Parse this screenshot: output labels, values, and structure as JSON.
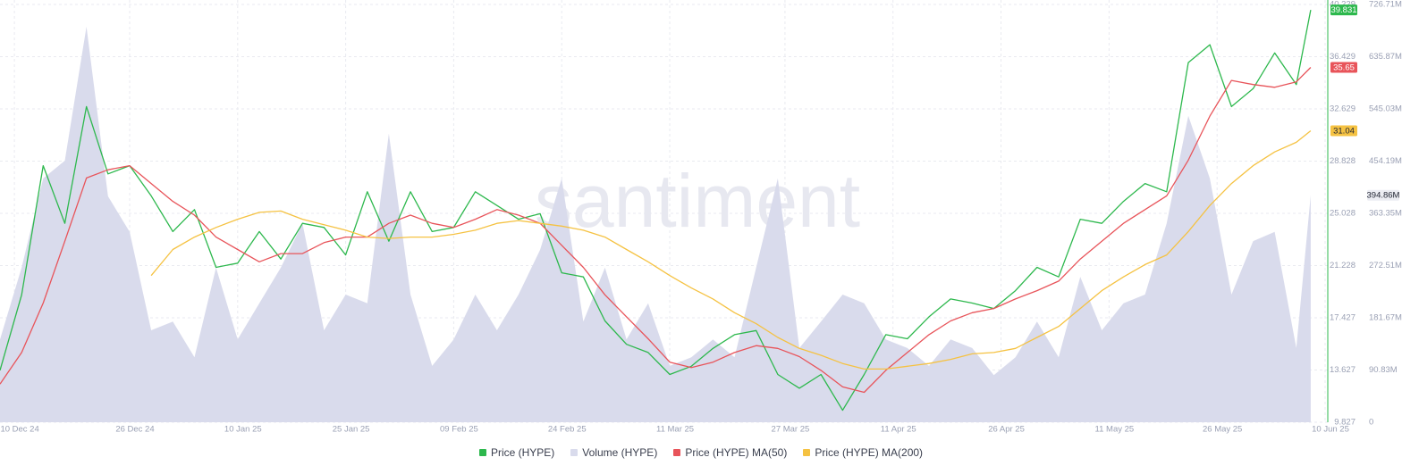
{
  "chart_data": {
    "type": "line",
    "watermark": "santiment",
    "legend": "bottom",
    "grid": true,
    "x": [
      "2024-12-08",
      "2024-12-11",
      "2024-12-14",
      "2024-12-17",
      "2024-12-20",
      "2024-12-23",
      "2024-12-26",
      "2024-12-29",
      "2025-01-01",
      "2025-01-04",
      "2025-01-07",
      "2025-01-10",
      "2025-01-13",
      "2025-01-16",
      "2025-01-19",
      "2025-01-22",
      "2025-01-25",
      "2025-01-28",
      "2025-01-31",
      "2025-02-03",
      "2025-02-06",
      "2025-02-09",
      "2025-02-12",
      "2025-02-15",
      "2025-02-18",
      "2025-02-21",
      "2025-02-24",
      "2025-02-27",
      "2025-03-02",
      "2025-03-05",
      "2025-03-08",
      "2025-03-11",
      "2025-03-14",
      "2025-03-17",
      "2025-03-20",
      "2025-03-23",
      "2025-03-26",
      "2025-03-29",
      "2025-04-01",
      "2025-04-04",
      "2025-04-07",
      "2025-04-10",
      "2025-04-13",
      "2025-04-16",
      "2025-04-19",
      "2025-04-22",
      "2025-04-25",
      "2025-04-28",
      "2025-05-01",
      "2025-05-04",
      "2025-05-07",
      "2025-05-10",
      "2025-05-13",
      "2025-05-16",
      "2025-05-19",
      "2025-05-22",
      "2025-05-25",
      "2025-05-28",
      "2025-05-31",
      "2025-06-03",
      "2025-06-06",
      "2025-06-08"
    ],
    "xlim": [
      "2024-12-08",
      "2025-06-10"
    ],
    "xticks": [
      {
        "value": "2024-12-10",
        "label": "10 Dec 24"
      },
      {
        "value": "2024-12-26",
        "label": "26 Dec 24"
      },
      {
        "value": "2025-01-10",
        "label": "10 Jan 25"
      },
      {
        "value": "2025-01-25",
        "label": "25 Jan 25"
      },
      {
        "value": "2025-02-09",
        "label": "09 Feb 25"
      },
      {
        "value": "2025-02-24",
        "label": "24 Feb 25"
      },
      {
        "value": "2025-03-11",
        "label": "11 Mar 25"
      },
      {
        "value": "2025-03-27",
        "label": "27 Mar 25"
      },
      {
        "value": "2025-04-11",
        "label": "11 Apr 25"
      },
      {
        "value": "2025-04-26",
        "label": "26 Apr 25"
      },
      {
        "value": "2025-05-11",
        "label": "11 May 25"
      },
      {
        "value": "2025-05-26",
        "label": "26 May 25"
      },
      {
        "value": "2025-06-10",
        "label": "10 Jun 25"
      }
    ],
    "ylim": [
      9.827,
      40.229
    ],
    "yticks": [
      40.229,
      36.429,
      32.629,
      28.828,
      25.028,
      21.228,
      17.427,
      13.627,
      9.827
    ],
    "y2lim": [
      0,
      726710000
    ],
    "y2ticks": [
      {
        "value": 726710000,
        "label": "726.71M"
      },
      {
        "value": 635870000,
        "label": "635.87M"
      },
      {
        "value": 545030000,
        "label": "545.03M"
      },
      {
        "value": 454190000,
        "label": "454.19M"
      },
      {
        "value": 363350000,
        "label": "363.35M"
      },
      {
        "value": 272510000,
        "label": "272.51M"
      },
      {
        "value": 181670000,
        "label": "181.67M"
      },
      {
        "value": 90830000,
        "label": "90.83M"
      },
      0
    ],
    "series": [
      {
        "name": "Price (HYPE)",
        "color": "#2db84d",
        "badge": "39.831",
        "values": [
          13.6,
          19.1,
          28.5,
          24.3,
          32.8,
          27.9,
          28.5,
          26.3,
          23.7,
          25.3,
          21.1,
          21.4,
          23.7,
          21.7,
          24.3,
          24.0,
          22.0,
          26.6,
          23.0,
          26.6,
          23.7,
          24.0,
          26.6,
          25.6,
          24.6,
          25.0,
          20.7,
          20.4,
          17.2,
          15.5,
          14.9,
          13.3,
          13.9,
          15.2,
          16.2,
          16.5,
          13.3,
          12.3,
          13.3,
          10.7,
          13.3,
          16.2,
          15.9,
          17.5,
          18.8,
          18.5,
          18.1,
          19.4,
          21.1,
          20.4,
          24.6,
          24.3,
          25.9,
          27.2,
          26.6,
          36.0,
          37.3,
          32.8,
          34.1,
          36.7,
          34.4,
          39.831
        ]
      },
      {
        "name": "Volume (HYPE)",
        "color": "#d9dbec",
        "axis": "y2",
        "style": "area",
        "badge": "394.86M",
        "values": [
          144000000,
          269000000,
          424000000,
          455000000,
          688000000,
          393000000,
          331000000,
          160000000,
          175000000,
          113000000,
          269000000,
          144000000,
          207000000,
          269000000,
          346000000,
          160000000,
          222000000,
          207000000,
          502000000,
          222000000,
          98000000,
          144000000,
          222000000,
          160000000,
          222000000,
          300000000,
          424000000,
          175000000,
          269000000,
          144000000,
          207000000,
          98000000,
          113000000,
          144000000,
          113000000,
          269000000,
          424000000,
          129000000,
          175000000,
          222000000,
          207000000,
          144000000,
          129000000,
          98000000,
          144000000,
          129000000,
          82000000,
          113000000,
          175000000,
          113000000,
          253000000,
          160000000,
          207000000,
          222000000,
          346000000,
          533000000,
          424000000,
          222000000,
          315000000,
          331000000,
          129000000,
          394860000
        ]
      },
      {
        "name": "Price (HYPE) MA(50)",
        "color": "#e8545a",
        "badge": "35.65",
        "values": [
          12.6,
          14.9,
          18.5,
          23.0,
          27.6,
          28.2,
          28.5,
          27.2,
          25.9,
          24.9,
          23.3,
          22.4,
          21.5,
          22.1,
          22.1,
          22.9,
          23.3,
          23.3,
          24.3,
          24.9,
          24.3,
          24.0,
          24.6,
          25.3,
          24.9,
          24.3,
          22.7,
          21.1,
          19.1,
          17.5,
          15.9,
          14.2,
          13.8,
          14.2,
          14.9,
          15.4,
          15.2,
          14.6,
          13.6,
          12.4,
          12.0,
          13.6,
          14.9,
          16.2,
          17.2,
          17.8,
          18.1,
          18.8,
          19.4,
          20.1,
          21.7,
          23.0,
          24.3,
          25.3,
          26.3,
          28.9,
          32.1,
          34.7,
          34.4,
          34.2,
          34.6,
          35.65
        ]
      },
      {
        "name": "Price (HYPE) MA(200)",
        "color": "#f5c242",
        "badge": "31.04",
        "values": [
          null,
          null,
          null,
          null,
          null,
          null,
          null,
          20.5,
          22.4,
          23.3,
          24.0,
          24.6,
          25.1,
          25.2,
          24.6,
          24.2,
          23.8,
          23.3,
          23.2,
          23.3,
          23.3,
          23.5,
          23.8,
          24.3,
          24.5,
          24.3,
          24.1,
          23.8,
          23.3,
          22.4,
          21.5,
          20.5,
          19.6,
          18.8,
          17.8,
          17.0,
          16.0,
          15.2,
          14.7,
          14.1,
          13.7,
          13.7,
          13.9,
          14.1,
          14.4,
          14.8,
          14.9,
          15.2,
          16.0,
          16.8,
          18.1,
          19.4,
          20.4,
          21.3,
          22.0,
          23.7,
          25.6,
          27.2,
          28.5,
          29.5,
          30.2,
          31.04
        ]
      }
    ]
  }
}
